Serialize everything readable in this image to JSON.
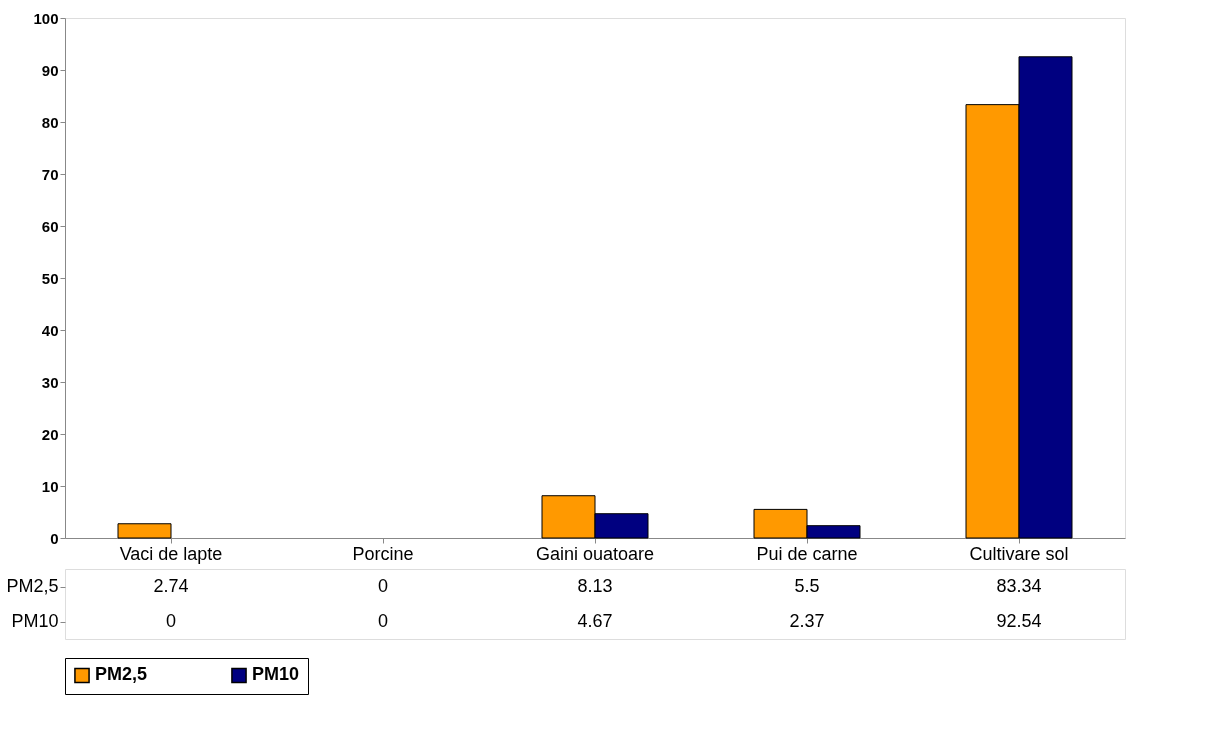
{
  "chart_data": {
    "type": "bar",
    "categories": [
      "Vaci de lapte",
      "Porcine",
      "Gaini ouatoare",
      "Pui de carne",
      "Cultivare sol"
    ],
    "series": [
      {
        "name": "PM2,5",
        "color": "#ff9900",
        "values": [
          2.74,
          0,
          8.13,
          5.5,
          83.34
        ]
      },
      {
        "name": "PM10",
        "color": "#000080",
        "values": [
          0,
          0,
          4.67,
          2.37,
          92.54
        ]
      }
    ],
    "ylim": [
      0,
      100
    ],
    "yticks": [
      0,
      10,
      20,
      30,
      40,
      50,
      60,
      70,
      80,
      90,
      100
    ],
    "grid": false,
    "legend": "bottom",
    "data_labels": true
  }
}
